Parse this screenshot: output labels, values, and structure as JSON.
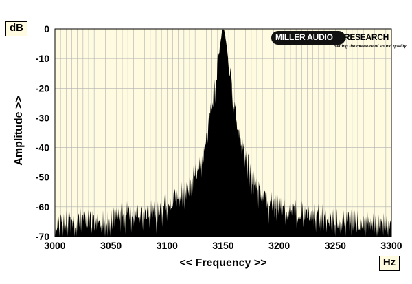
{
  "chart_data": {
    "type": "area",
    "title": "",
    "xlabel": "<< Frequency >>",
    "ylabel": "Amplitude >>",
    "x_unit": "Hz",
    "y_unit": "dB",
    "xlim": [
      3000,
      3300
    ],
    "ylim": [
      -70,
      0
    ],
    "x_ticks": [
      "3000",
      "3050",
      "3100",
      "3150",
      "3200",
      "3250",
      "3300"
    ],
    "y_ticks": [
      "0",
      "-10",
      "-20",
      "-30",
      "-40",
      "-50",
      "-60",
      "-70"
    ],
    "grid": true,
    "series": [
      {
        "x": [
          3000,
          3010,
          3020,
          3030,
          3040,
          3050,
          3060,
          3070,
          3080,
          3090,
          3100,
          3110,
          3120,
          3125,
          3130,
          3135,
          3140,
          3143,
          3146,
          3148,
          3150,
          3152,
          3154,
          3157,
          3160,
          3165,
          3170,
          3175,
          3180,
          3190,
          3200,
          3210,
          3220,
          3230,
          3240,
          3250,
          3260,
          3270,
          3280,
          3290,
          3300
        ],
        "y": [
          -68,
          -67,
          -66,
          -66,
          -66,
          -65,
          -64,
          -64,
          -64,
          -63,
          -61,
          -58,
          -54,
          -51,
          -46,
          -39,
          -28,
          -20,
          -10,
          -4,
          0,
          -3,
          -9,
          -19,
          -29,
          -38,
          -45,
          -51,
          -56,
          -60,
          -62,
          -62,
          -63,
          -64,
          -65,
          -66,
          -66,
          -67,
          -67,
          -67,
          -68
        ]
      }
    ],
    "colors": {
      "plot_bg": "#fffbe0",
      "grid": "#b0b0b0",
      "fill": "#000000",
      "box_bg": "#fffbe0"
    }
  },
  "logo": {
    "brand_part1": "MILLER AUDIO",
    "brand_part2": "RESEARCH",
    "tagline": "setting the measure of sound quality"
  }
}
